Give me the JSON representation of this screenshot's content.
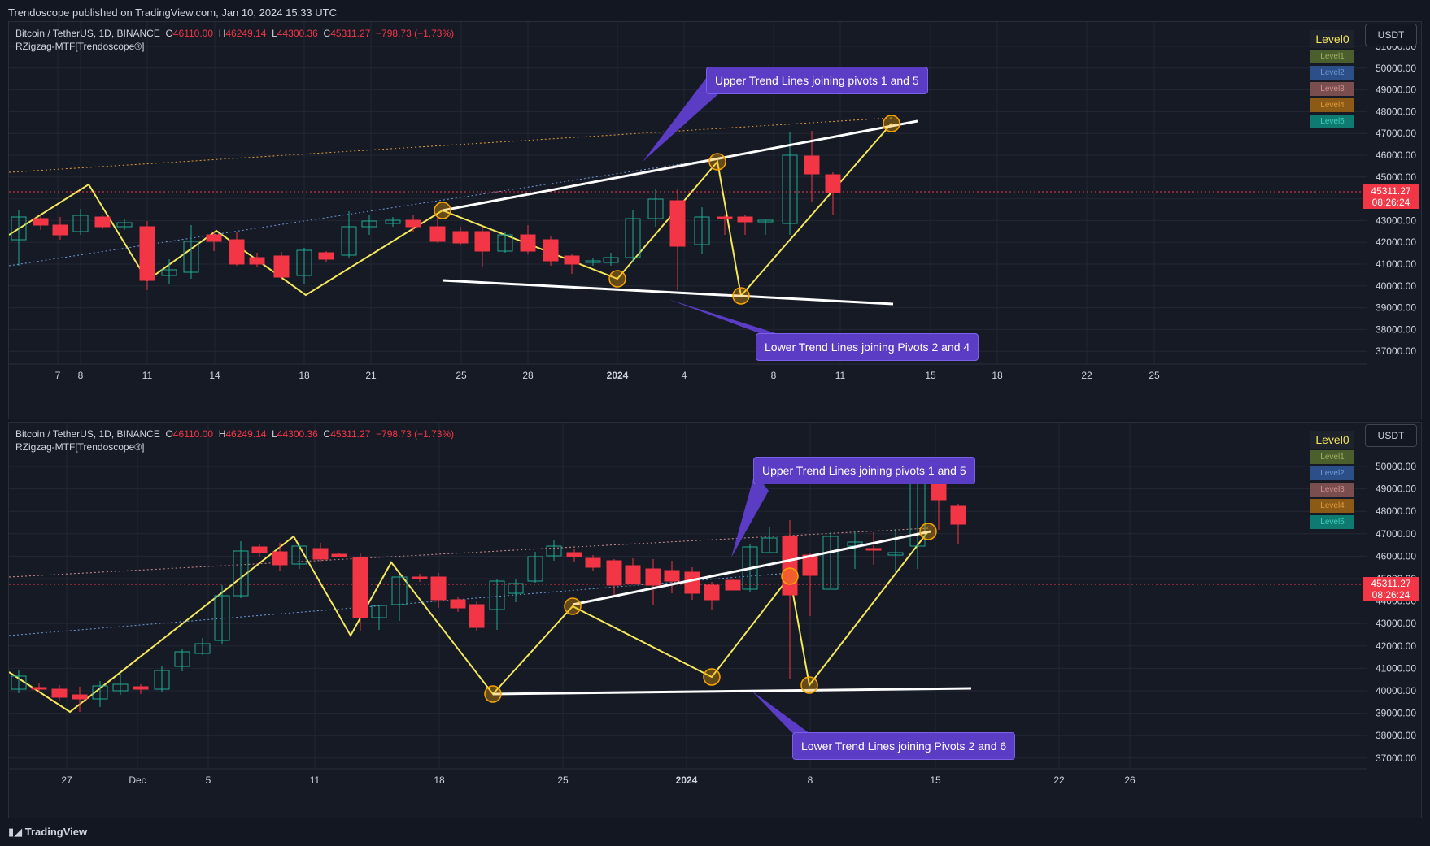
{
  "header": {
    "published": "Trendoscope published on TradingView.com, Jan 10, 2024 15:33 UTC"
  },
  "footer": {
    "brand": "TradingView"
  },
  "colors": {
    "up": "#22ab94",
    "down": "#f23645",
    "zigzag": "#f5e85a",
    "trend": "#ffffff",
    "callout": "#5b3cc4",
    "pivot": "#f7a600"
  },
  "panes": [
    {
      "symbol": "Bitcoin / TetherUS, 1D, BINANCE",
      "o_label": "O",
      "o": "46110.00",
      "h_label": "H",
      "h": "46249.14",
      "l_label": "L",
      "l": "44300.36",
      "c_label": "C",
      "c": "45311.27",
      "change": "−798.73 (−1.73%)",
      "indicator": "RZigzag-MTF[Trendoscope®]",
      "currency": "USDT",
      "price_tag": "45311.27",
      "countdown": "08:26:24",
      "levels": [
        "Level0",
        "Level1",
        "Level2",
        "Level3",
        "Level4",
        "Level5"
      ],
      "yaxis": [
        "51000.00",
        "50000.00",
        "49000.00",
        "48000.00",
        "47000.00",
        "46000.00",
        "45000.00",
        "44000.00",
        "43000.00",
        "42000.00",
        "41000.00",
        "40000.00",
        "39000.00",
        "38000.00",
        "37000.00"
      ],
      "xaxis": [
        "7",
        "8",
        "11",
        "14",
        "18",
        "21",
        "25",
        "28",
        "2024",
        "4",
        "8",
        "11",
        "15",
        "18",
        "22",
        "25"
      ],
      "callout_upper": "Upper Trend Lines joining pivots 1 and 5",
      "callout_lower": "Lower Trend Lines joining Pivots 2 and 4"
    },
    {
      "symbol": "Bitcoin / TetherUS, 1D, BINANCE",
      "o_label": "O",
      "o": "46110.00",
      "h_label": "H",
      "h": "46249.14",
      "l_label": "L",
      "l": "44300.36",
      "c_label": "C",
      "c": "45311.27",
      "change": "−798.73 (−1.73%)",
      "indicator": "RZigzag-MTF[Trendoscope®]",
      "currency": "USDT",
      "price_tag": "45311.27",
      "countdown": "08:26:24",
      "levels": [
        "Level0",
        "Level1",
        "Level2",
        "Level3",
        "Level4",
        "Level5"
      ],
      "yaxis": [
        "50000.00",
        "49000.00",
        "48000.00",
        "47000.00",
        "46000.00",
        "45000.00",
        "44000.00",
        "43000.00",
        "42000.00",
        "41000.00",
        "40000.00",
        "39000.00",
        "38000.00",
        "37000.00"
      ],
      "xaxis": [
        "27",
        "Dec",
        "5",
        "11",
        "18",
        "25",
        "2024",
        "8",
        "15",
        "22",
        "26"
      ],
      "callout_upper": "Upper Trend Lines joining pivots 1 and 5",
      "callout_lower": "Lower Trend Lines joining Pivots 2 and 6"
    }
  ]
}
